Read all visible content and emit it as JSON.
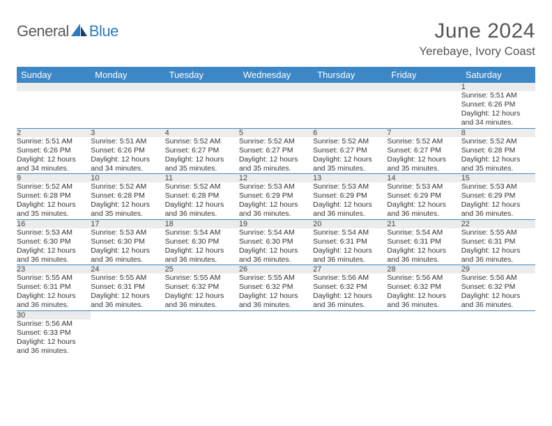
{
  "logo": {
    "general": "General",
    "blue": "Blue"
  },
  "title": "June 2024",
  "location": "Yerebaye, Ivory Coast",
  "colors": {
    "header_bg": "#3d87c6",
    "header_text": "#ffffff",
    "daynum_bg": "#ececec",
    "rule": "#3d87c6",
    "logo_gray": "#5a5a5a",
    "logo_blue": "#2b7bbf"
  },
  "weekdays": [
    "Sunday",
    "Monday",
    "Tuesday",
    "Wednesday",
    "Thursday",
    "Friday",
    "Saturday"
  ],
  "weeks": [
    [
      null,
      null,
      null,
      null,
      null,
      null,
      {
        "n": "1",
        "sunrise": "Sunrise: 5:51 AM",
        "sunset": "Sunset: 6:26 PM",
        "daylight1": "Daylight: 12 hours",
        "daylight2": "and 34 minutes."
      }
    ],
    [
      {
        "n": "2",
        "sunrise": "Sunrise: 5:51 AM",
        "sunset": "Sunset: 6:26 PM",
        "daylight1": "Daylight: 12 hours",
        "daylight2": "and 34 minutes."
      },
      {
        "n": "3",
        "sunrise": "Sunrise: 5:51 AM",
        "sunset": "Sunset: 6:26 PM",
        "daylight1": "Daylight: 12 hours",
        "daylight2": "and 34 minutes."
      },
      {
        "n": "4",
        "sunrise": "Sunrise: 5:52 AM",
        "sunset": "Sunset: 6:27 PM",
        "daylight1": "Daylight: 12 hours",
        "daylight2": "and 35 minutes."
      },
      {
        "n": "5",
        "sunrise": "Sunrise: 5:52 AM",
        "sunset": "Sunset: 6:27 PM",
        "daylight1": "Daylight: 12 hours",
        "daylight2": "and 35 minutes."
      },
      {
        "n": "6",
        "sunrise": "Sunrise: 5:52 AM",
        "sunset": "Sunset: 6:27 PM",
        "daylight1": "Daylight: 12 hours",
        "daylight2": "and 35 minutes."
      },
      {
        "n": "7",
        "sunrise": "Sunrise: 5:52 AM",
        "sunset": "Sunset: 6:27 PM",
        "daylight1": "Daylight: 12 hours",
        "daylight2": "and 35 minutes."
      },
      {
        "n": "8",
        "sunrise": "Sunrise: 5:52 AM",
        "sunset": "Sunset: 6:28 PM",
        "daylight1": "Daylight: 12 hours",
        "daylight2": "and 35 minutes."
      }
    ],
    [
      {
        "n": "9",
        "sunrise": "Sunrise: 5:52 AM",
        "sunset": "Sunset: 6:28 PM",
        "daylight1": "Daylight: 12 hours",
        "daylight2": "and 35 minutes."
      },
      {
        "n": "10",
        "sunrise": "Sunrise: 5:52 AM",
        "sunset": "Sunset: 6:28 PM",
        "daylight1": "Daylight: 12 hours",
        "daylight2": "and 35 minutes."
      },
      {
        "n": "11",
        "sunrise": "Sunrise: 5:52 AM",
        "sunset": "Sunset: 6:28 PM",
        "daylight1": "Daylight: 12 hours",
        "daylight2": "and 36 minutes."
      },
      {
        "n": "12",
        "sunrise": "Sunrise: 5:53 AM",
        "sunset": "Sunset: 6:29 PM",
        "daylight1": "Daylight: 12 hours",
        "daylight2": "and 36 minutes."
      },
      {
        "n": "13",
        "sunrise": "Sunrise: 5:53 AM",
        "sunset": "Sunset: 6:29 PM",
        "daylight1": "Daylight: 12 hours",
        "daylight2": "and 36 minutes."
      },
      {
        "n": "14",
        "sunrise": "Sunrise: 5:53 AM",
        "sunset": "Sunset: 6:29 PM",
        "daylight1": "Daylight: 12 hours",
        "daylight2": "and 36 minutes."
      },
      {
        "n": "15",
        "sunrise": "Sunrise: 5:53 AM",
        "sunset": "Sunset: 6:29 PM",
        "daylight1": "Daylight: 12 hours",
        "daylight2": "and 36 minutes."
      }
    ],
    [
      {
        "n": "16",
        "sunrise": "Sunrise: 5:53 AM",
        "sunset": "Sunset: 6:30 PM",
        "daylight1": "Daylight: 12 hours",
        "daylight2": "and 36 minutes."
      },
      {
        "n": "17",
        "sunrise": "Sunrise: 5:53 AM",
        "sunset": "Sunset: 6:30 PM",
        "daylight1": "Daylight: 12 hours",
        "daylight2": "and 36 minutes."
      },
      {
        "n": "18",
        "sunrise": "Sunrise: 5:54 AM",
        "sunset": "Sunset: 6:30 PM",
        "daylight1": "Daylight: 12 hours",
        "daylight2": "and 36 minutes."
      },
      {
        "n": "19",
        "sunrise": "Sunrise: 5:54 AM",
        "sunset": "Sunset: 6:30 PM",
        "daylight1": "Daylight: 12 hours",
        "daylight2": "and 36 minutes."
      },
      {
        "n": "20",
        "sunrise": "Sunrise: 5:54 AM",
        "sunset": "Sunset: 6:31 PM",
        "daylight1": "Daylight: 12 hours",
        "daylight2": "and 36 minutes."
      },
      {
        "n": "21",
        "sunrise": "Sunrise: 5:54 AM",
        "sunset": "Sunset: 6:31 PM",
        "daylight1": "Daylight: 12 hours",
        "daylight2": "and 36 minutes."
      },
      {
        "n": "22",
        "sunrise": "Sunrise: 5:55 AM",
        "sunset": "Sunset: 6:31 PM",
        "daylight1": "Daylight: 12 hours",
        "daylight2": "and 36 minutes."
      }
    ],
    [
      {
        "n": "23",
        "sunrise": "Sunrise: 5:55 AM",
        "sunset": "Sunset: 6:31 PM",
        "daylight1": "Daylight: 12 hours",
        "daylight2": "and 36 minutes."
      },
      {
        "n": "24",
        "sunrise": "Sunrise: 5:55 AM",
        "sunset": "Sunset: 6:31 PM",
        "daylight1": "Daylight: 12 hours",
        "daylight2": "and 36 minutes."
      },
      {
        "n": "25",
        "sunrise": "Sunrise: 5:55 AM",
        "sunset": "Sunset: 6:32 PM",
        "daylight1": "Daylight: 12 hours",
        "daylight2": "and 36 minutes."
      },
      {
        "n": "26",
        "sunrise": "Sunrise: 5:55 AM",
        "sunset": "Sunset: 6:32 PM",
        "daylight1": "Daylight: 12 hours",
        "daylight2": "and 36 minutes."
      },
      {
        "n": "27",
        "sunrise": "Sunrise: 5:56 AM",
        "sunset": "Sunset: 6:32 PM",
        "daylight1": "Daylight: 12 hours",
        "daylight2": "and 36 minutes."
      },
      {
        "n": "28",
        "sunrise": "Sunrise: 5:56 AM",
        "sunset": "Sunset: 6:32 PM",
        "daylight1": "Daylight: 12 hours",
        "daylight2": "and 36 minutes."
      },
      {
        "n": "29",
        "sunrise": "Sunrise: 5:56 AM",
        "sunset": "Sunset: 6:32 PM",
        "daylight1": "Daylight: 12 hours",
        "daylight2": "and 36 minutes."
      }
    ],
    [
      {
        "n": "30",
        "sunrise": "Sunrise: 5:56 AM",
        "sunset": "Sunset: 6:33 PM",
        "daylight1": "Daylight: 12 hours",
        "daylight2": "and 36 minutes."
      },
      null,
      null,
      null,
      null,
      null,
      null
    ]
  ]
}
